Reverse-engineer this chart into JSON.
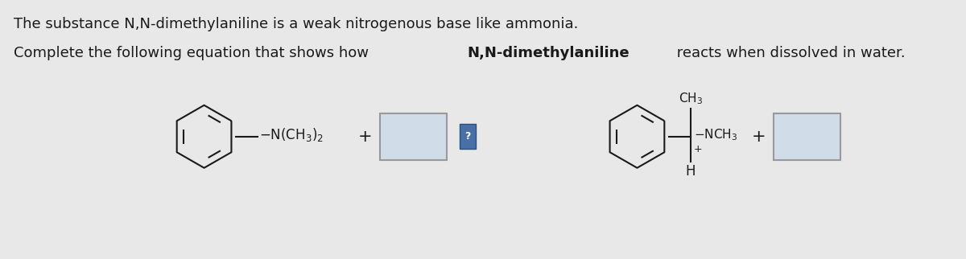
{
  "bg_color": "#e8e8e8",
  "text_color": "#1a1a1a",
  "line1": "The substance N,N-dimethylaniline is a weak nitrogenous base like ammonia.",
  "line2_plain1": "Complete the following equation that shows how ",
  "line2_bold": "N,N-dimethylaniline",
  "line2_plain2": " reacts when dissolved in water.",
  "font_size_text": 13,
  "col": "#1a1a1a",
  "lw": 1.5,
  "box_face": "#d0dce8",
  "box_edge": "#999999",
  "q_face": "#4a6fa5",
  "q_edge": "#2a4f85"
}
